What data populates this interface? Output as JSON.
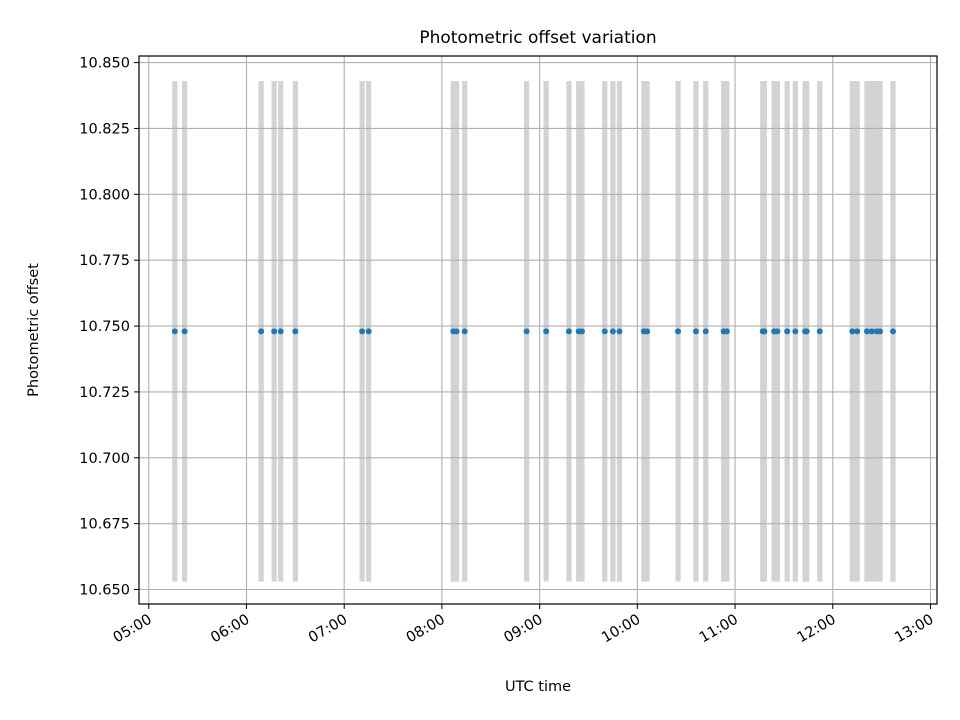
{
  "chart_data": {
    "type": "scatter",
    "title": "Photometric offset variation",
    "xlabel": "UTC time",
    "ylabel": "Photometric offset",
    "x_type": "time",
    "xlim": [
      "04:54",
      "13:04"
    ],
    "ylim": [
      10.6445,
      10.8525
    ],
    "x_ticks": [
      "05:00",
      "06:00",
      "07:00",
      "08:00",
      "09:00",
      "10:00",
      "11:00",
      "12:00",
      "13:00"
    ],
    "y_ticks": [
      10.65,
      10.675,
      10.7,
      10.725,
      10.75,
      10.775,
      10.8,
      10.825,
      10.85
    ],
    "grid": true,
    "series": [
      {
        "marker": "point",
        "color": "#1f77b4",
        "x": [
          "05:16",
          "05:22",
          "06:09",
          "06:17",
          "06:21",
          "06:30",
          "07:11",
          "07:15",
          "08:07",
          "08:09",
          "08:14",
          "08:52",
          "09:04",
          "09:18",
          "09:24",
          "09:26",
          "09:40",
          "09:45",
          "09:49",
          "10:04",
          "10:06",
          "10:25",
          "10:36",
          "10:42",
          "10:53",
          "10:55",
          "11:17",
          "11:18",
          "11:24",
          "11:26",
          "11:32",
          "11:37",
          "11:43",
          "11:44",
          "11:52",
          "12:12",
          "12:15",
          "12:21",
          "12:24",
          "12:27",
          "12:29",
          "12:37"
        ],
        "y": [
          10.748,
          10.748,
          10.748,
          10.748,
          10.748,
          10.748,
          10.748,
          10.748,
          10.748,
          10.748,
          10.748,
          10.748,
          10.748,
          10.748,
          10.748,
          10.748,
          10.748,
          10.748,
          10.748,
          10.748,
          10.748,
          10.748,
          10.748,
          10.748,
          10.748,
          10.748,
          10.748,
          10.748,
          10.748,
          10.748,
          10.748,
          10.748,
          10.748,
          10.748,
          10.748,
          10.748,
          10.748,
          10.748,
          10.748,
          10.748,
          10.748,
          10.748
        ]
      }
    ],
    "vertical_bands": {
      "color": "#d3d3d3",
      "y_range": [
        10.653,
        10.843
      ],
      "x": [
        "05:16",
        "05:22",
        "06:09",
        "06:17",
        "06:21",
        "06:30",
        "07:11",
        "07:15",
        "08:07",
        "08:09",
        "08:14",
        "08:52",
        "09:04",
        "09:18",
        "09:24",
        "09:26",
        "09:40",
        "09:45",
        "09:49",
        "10:04",
        "10:06",
        "10:25",
        "10:36",
        "10:42",
        "10:53",
        "10:55",
        "11:17",
        "11:18",
        "11:24",
        "11:26",
        "11:32",
        "11:37",
        "11:43",
        "11:44",
        "11:52",
        "12:12",
        "12:15",
        "12:21",
        "12:24",
        "12:27",
        "12:29",
        "12:37"
      ]
    }
  }
}
